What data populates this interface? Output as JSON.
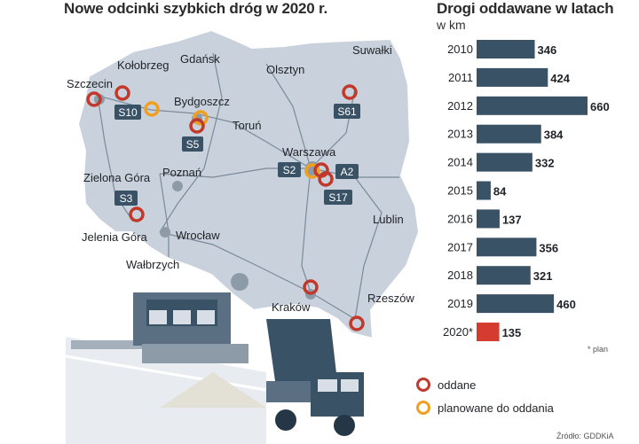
{
  "map": {
    "title": "Nowe odcinki szybkich dróg w 2020 r.",
    "cities": [
      "Szczecin",
      "Kołobrzeg",
      "Gdańsk",
      "Olsztyn",
      "Suwałki",
      "Bydgoszcz",
      "Toruń",
      "Warszawa",
      "Poznań",
      "Zielona Góra",
      "Lublin",
      "Jelenia Góra",
      "Wrocław",
      "Wałbrzych",
      "Kraków",
      "Rzeszów"
    ],
    "roads": [
      "S10",
      "S61",
      "S5",
      "S2",
      "A2",
      "S17",
      "S3"
    ],
    "legend": {
      "opened": "oddane",
      "planned": "planowane do oddania"
    },
    "colors": {
      "opened": "#c0392b",
      "planned": "#f0a020",
      "map_fill": "#c9d2dc",
      "road_label": "#3a5266"
    }
  },
  "chart_data": {
    "type": "bar",
    "orientation": "horizontal",
    "title": "Drogi oddawane w latach",
    "unit": "w km",
    "categories": [
      "2010",
      "2011",
      "2012",
      "2013",
      "2014",
      "2015",
      "2016",
      "2017",
      "2018",
      "2019",
      "2020*"
    ],
    "values": [
      346,
      424,
      660,
      384,
      332,
      84,
      137,
      356,
      321,
      460,
      135
    ],
    "value_labels": [
      "346",
      "424",
      "660",
      "384",
      "332",
      "84",
      "137",
      "356",
      "321",
      "460",
      "135"
    ],
    "colors": {
      "default": "#3a5266",
      "highlight": "#d63b2f"
    },
    "highlight_index": 10
  },
  "notes": {
    "plan": "* plan",
    "source": "Źródło: GDDKiA"
  }
}
